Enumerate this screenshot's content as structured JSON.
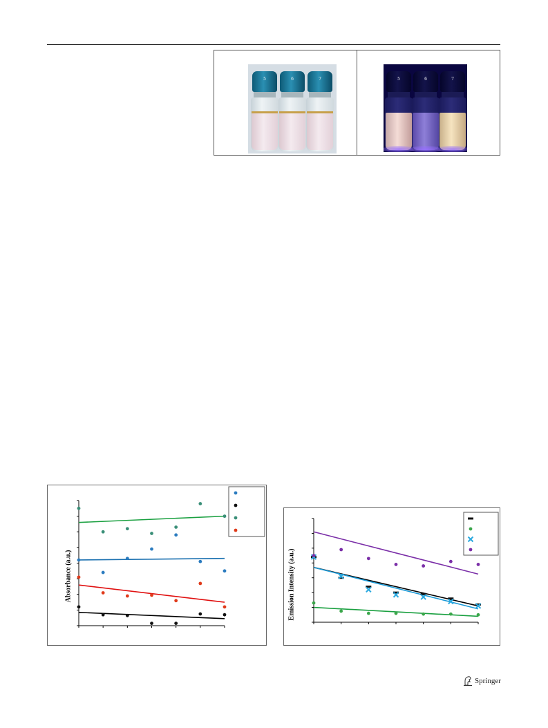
{
  "photos": {
    "daylight": {
      "vial_labels": [
        "5",
        "6",
        "7"
      ]
    },
    "uv": {
      "vial_labels": [
        "5",
        "6",
        "7"
      ]
    }
  },
  "chart_data": [
    {
      "type": "scatter",
      "title": "",
      "xlabel": "",
      "ylabel": "Absorbance (a.u.)",
      "xlim": [
        0,
        6
      ],
      "ylim": [
        0,
        8
      ],
      "x_ticks": [
        0,
        1,
        2,
        3,
        4,
        5,
        6
      ],
      "y_ticks": [
        0,
        1,
        2,
        3,
        4,
        5,
        6,
        7,
        8
      ],
      "grid": false,
      "legend_position": "top-right",
      "series": [
        {
          "color": "#2a7bbf",
          "marker": "dot",
          "values": [
            4.2,
            3.4,
            4.3,
            4.9,
            5.8,
            4.1,
            3.5
          ],
          "trend": [
            4.2,
            4.3
          ]
        },
        {
          "color": "#111111",
          "marker": "dot",
          "values": [
            1.2,
            0.7,
            0.65,
            0.15,
            0.15,
            0.75,
            0.7
          ],
          "trend": [
            0.85,
            0.45
          ]
        },
        {
          "color": "#3a8f78",
          "marker": "dot",
          "values": [
            7.5,
            6.0,
            6.2,
            5.9,
            6.3,
            7.8,
            7.0
          ],
          "trend": [
            6.6,
            7.0
          ]
        },
        {
          "color": "#e03a1a",
          "marker": "dot",
          "values": [
            3.1,
            2.1,
            1.9,
            1.95,
            1.6,
            2.7,
            1.2
          ],
          "trend": [
            2.6,
            1.5
          ]
        }
      ],
      "trendline_colors": [
        "#1a70b0",
        "#000000",
        "#1aa040",
        "#e01010"
      ]
    },
    {
      "type": "scatter",
      "title": "",
      "xlabel": "",
      "ylabel": "Emission Intensity (a.u.)",
      "xlim": [
        0,
        6
      ],
      "ylim": [
        0,
        7
      ],
      "x_ticks": [
        0,
        1,
        2,
        3,
        4,
        5,
        6
      ],
      "y_ticks": [
        0,
        1,
        2,
        3,
        4,
        5,
        6,
        7
      ],
      "grid": false,
      "legend_position": "top-right",
      "series": [
        {
          "color": "#111111",
          "marker": "dash",
          "values": [
            4.4,
            3.0,
            2.4,
            2.0,
            1.9,
            1.6,
            1.2
          ],
          "trend": [
            3.7,
            1.1
          ]
        },
        {
          "color": "#3aa64a",
          "marker": "dot",
          "values": [
            1.3,
            0.75,
            0.6,
            0.6,
            0.55,
            0.55,
            0.5
          ],
          "trend": [
            1.0,
            0.4
          ]
        },
        {
          "color": "#2aa9e0",
          "marker": "cross",
          "values": [
            4.4,
            3.1,
            2.2,
            1.85,
            1.7,
            1.4,
            1.1
          ],
          "trend": [
            3.7,
            0.9
          ]
        },
        {
          "color": "#7b2fa8",
          "marker": "dot",
          "values": [
            4.5,
            4.9,
            4.3,
            3.9,
            3.8,
            4.1,
            3.9
          ],
          "trend": [
            6.1,
            3.25
          ]
        }
      ],
      "trendline_colors": [
        "#000000",
        "#1aa040",
        "#1a9ad8",
        "#7b2fa8"
      ]
    }
  ],
  "publisher": {
    "name": "Springer"
  }
}
